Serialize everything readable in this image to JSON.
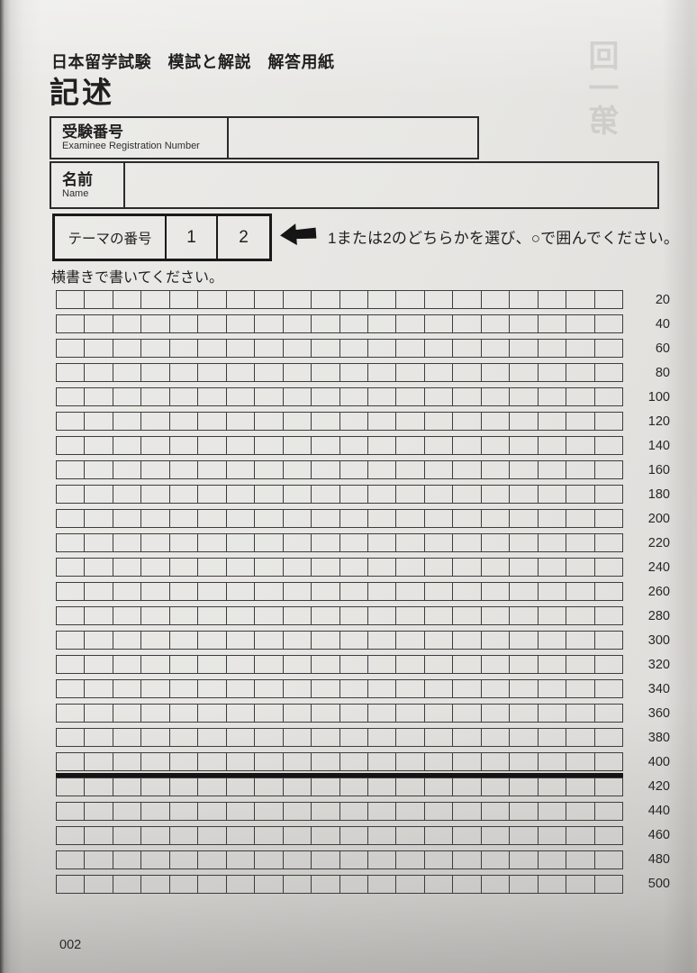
{
  "page": {
    "subtitle": "日本留学試験　模試と解説　解答用紙",
    "title": "記述",
    "page_number": "002",
    "bleed_through_text": "回一第"
  },
  "fields": {
    "registration": {
      "label_jp": "受験番号",
      "label_en": "Examinee Registration Number",
      "value": ""
    },
    "name": {
      "label_jp": "名前",
      "label_en": "Name",
      "value": ""
    }
  },
  "theme": {
    "label": "テーマの番号",
    "options": [
      "1",
      "2"
    ],
    "arrow_icon": "left-arrow-icon",
    "instruction": "1または2のどちらかを選び、○で囲んでください。"
  },
  "grid": {
    "note": "横書きで書いてください。",
    "columns": 20,
    "rows": 25,
    "chars_per_row": 20,
    "thick_line_after_row": 20,
    "thick_line_char_count": 400,
    "row_labels": [
      "20",
      "40",
      "60",
      "80",
      "100",
      "120",
      "140",
      "160",
      "180",
      "200",
      "220",
      "240",
      "260",
      "280",
      "300",
      "320",
      "340",
      "360",
      "380",
      "400",
      "420",
      "440",
      "460",
      "480",
      "500"
    ]
  },
  "colors": {
    "paper": "#e6e4e1",
    "ink": "#1f1f1f",
    "grid_line": "#3d3d3d",
    "thick_line": "#141414"
  }
}
